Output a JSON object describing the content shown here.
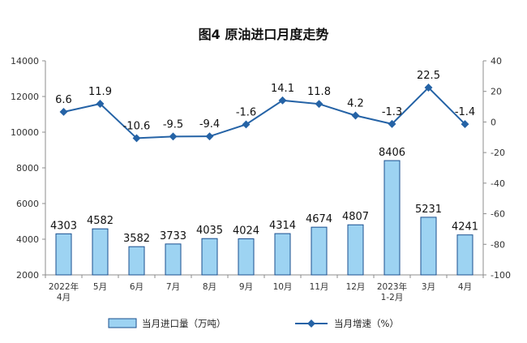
{
  "chart_data": {
    "type": "bar+line",
    "title": "图4  原油进口月度走势",
    "categories": [
      {
        "line1": "2022年",
        "line2": "4月"
      },
      {
        "line1": "5月",
        "line2": ""
      },
      {
        "line1": "6月",
        "line2": ""
      },
      {
        "line1": "7月",
        "line2": ""
      },
      {
        "line1": "8月",
        "line2": ""
      },
      {
        "line1": "9月",
        "line2": ""
      },
      {
        "line1": "10月",
        "line2": ""
      },
      {
        "line1": "11月",
        "line2": ""
      },
      {
        "line1": "12月",
        "line2": ""
      },
      {
        "line1": "2023年",
        "line2": "1-2月"
      },
      {
        "line1": "3月",
        "line2": ""
      },
      {
        "line1": "4月",
        "line2": ""
      }
    ],
    "series": [
      {
        "name": "当月进口量（万吨）",
        "type": "bar",
        "axis": "left",
        "color": "#9dd3f2",
        "border": "#1a4f8f",
        "values": [
          4303,
          4582,
          3582,
          3733,
          4035,
          4024,
          4314,
          4674,
          4807,
          8406,
          5231,
          4241
        ],
        "labels": [
          "4303",
          "4582",
          "3582",
          "3733",
          "4035",
          "4024",
          "4314",
          "4674",
          "4807",
          "8406",
          "5231",
          "4241"
        ]
      },
      {
        "name": "当月增速（%）",
        "type": "line",
        "axis": "right",
        "color": "#2563a6",
        "values": [
          6.6,
          11.9,
          -10.6,
          -9.5,
          -9.4,
          -1.6,
          14.1,
          11.8,
          4.2,
          -1.3,
          22.5,
          -1.4
        ],
        "labels": [
          "6.6",
          "11.9",
          "-10.6",
          "-9.5",
          "-9.4",
          "-1.6",
          "14.1",
          "11.8",
          "4.2",
          "-1.3",
          "22.5",
          "-1.4"
        ]
      }
    ],
    "y_left": {
      "min": 2000,
      "max": 14000,
      "ticks": [
        "2000",
        "4000",
        "6000",
        "8000",
        "10000",
        "12000",
        "14000"
      ]
    },
    "y_right": {
      "min": -100,
      "max": 40,
      "ticks": [
        "-100",
        "-80",
        "-60",
        "-40",
        "-20",
        "0",
        "20",
        "40"
      ]
    },
    "grid": false,
    "legend_position": "bottom"
  }
}
